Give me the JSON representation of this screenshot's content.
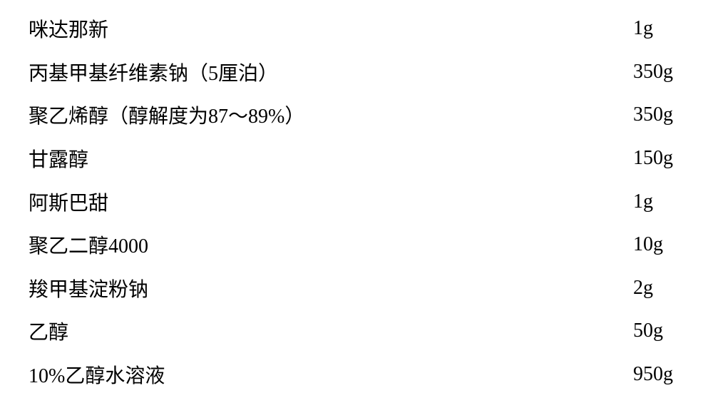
{
  "type": "table",
  "background_color": "#ffffff",
  "text_color": "#000000",
  "font_family": "SimSun",
  "fontsize": 28,
  "columns": [
    "ingredient",
    "amount"
  ],
  "rows": [
    {
      "ingredient": "咪达那新",
      "amount": "1g"
    },
    {
      "ingredient": "丙基甲基纤维素钠（5厘泊）",
      "amount": "350g"
    },
    {
      "ingredient": "聚乙烯醇（醇解度为87～89%）",
      "amount": "350g"
    },
    {
      "ingredient": "甘露醇",
      "amount": "150g"
    },
    {
      "ingredient": "阿斯巴甜",
      "amount": "1g"
    },
    {
      "ingredient": "聚乙二醇4000",
      "amount": "10g"
    },
    {
      "ingredient": "羧甲基淀粉钠",
      "amount": "2g"
    },
    {
      "ingredient": "乙醇",
      "amount": "50g"
    },
    {
      "ingredient": "10%乙醇水溶液",
      "amount": "950g"
    }
  ]
}
